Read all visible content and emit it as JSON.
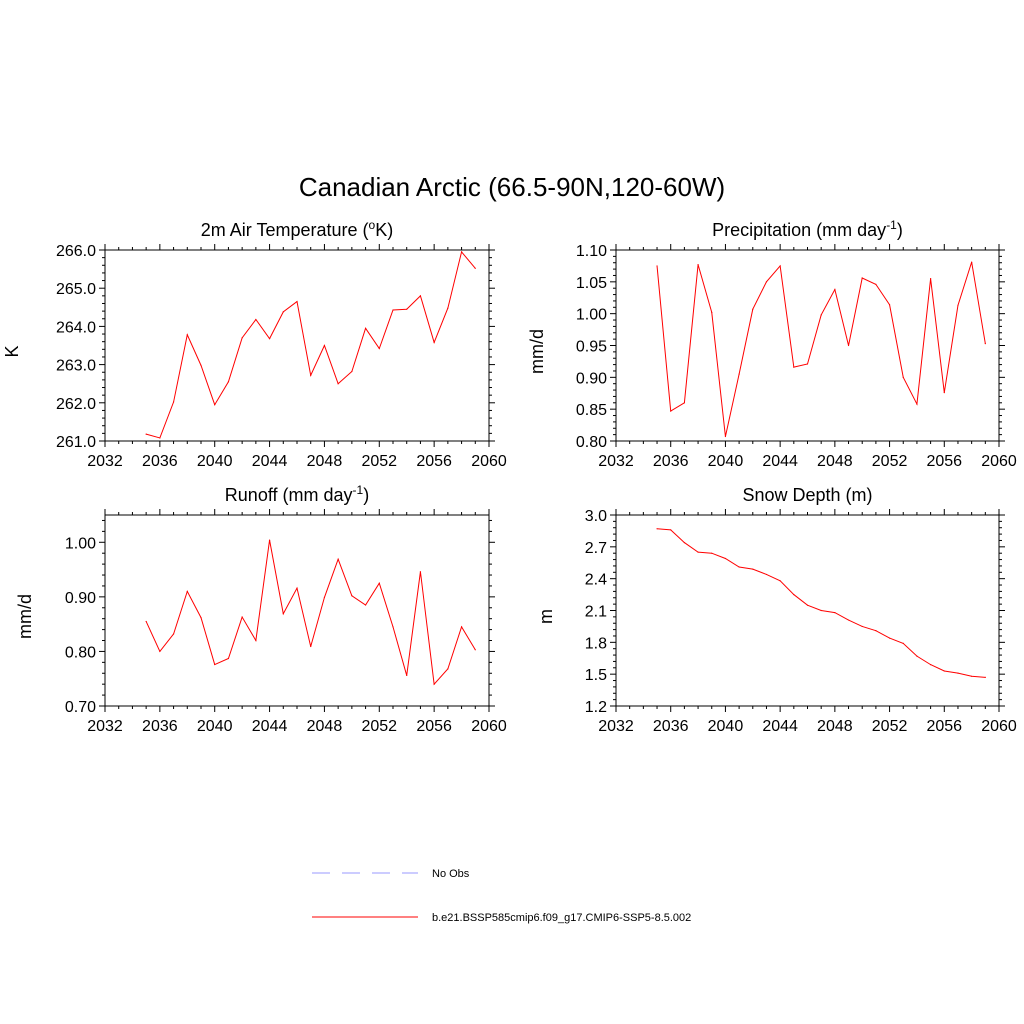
{
  "title": "Canadian Arctic (66.5-90N,120-60W)",
  "legend": [
    {
      "label": "No Obs",
      "color": "#9999ff",
      "dashed": true
    },
    {
      "label": "b.e21.BSSP585cmip6.f09_g17.CMIP6-SSP5-8.5.002",
      "color": "#ff0000",
      "dashed": false
    }
  ],
  "chart_data": [
    {
      "type": "line",
      "title": "2m Air Temperature (",
      "title_sup": "o",
      "title_after": "K)",
      "ylabel": "K",
      "xlim": [
        2032,
        2060
      ],
      "ylim": [
        261.0,
        266.0
      ],
      "xticks": [
        2032,
        2036,
        2040,
        2044,
        2048,
        2052,
        2056,
        2060
      ],
      "yticks": [
        261.0,
        262.0,
        263.0,
        264.0,
        265.0,
        266.0
      ],
      "ytick_labels": [
        "261.0",
        "262.0",
        "263.0",
        "264.0",
        "265.0",
        "266.0"
      ],
      "x": [
        2035,
        2036,
        2037,
        2038,
        2039,
        2040,
        2041,
        2042,
        2043,
        2044,
        2045,
        2046,
        2047,
        2048,
        2049,
        2050,
        2051,
        2052,
        2053,
        2054,
        2055,
        2056,
        2057,
        2058,
        2059
      ],
      "series": [
        {
          "color": "#ff0000",
          "values": [
            261.18,
            261.08,
            262.02,
            263.78,
            262.98,
            261.95,
            262.55,
            263.7,
            264.18,
            263.68,
            264.38,
            264.65,
            262.72,
            263.5,
            262.5,
            262.82,
            263.95,
            263.42,
            264.43,
            264.45,
            264.8,
            263.58,
            264.48,
            265.95,
            265.52
          ]
        }
      ]
    },
    {
      "type": "line",
      "title": "Precipitation (mm day",
      "title_sup": "-1",
      "title_after": ")",
      "ylabel": "mm/d",
      "xlim": [
        2032,
        2060
      ],
      "ylim": [
        0.8,
        1.1
      ],
      "xticks": [
        2032,
        2036,
        2040,
        2044,
        2048,
        2052,
        2056,
        2060
      ],
      "yticks": [
        0.8,
        0.85,
        0.9,
        0.95,
        1.0,
        1.05,
        1.1
      ],
      "ytick_labels": [
        "0.80",
        "0.85",
        "0.90",
        "0.95",
        "1.00",
        "1.05",
        "1.10"
      ],
      "x": [
        2035,
        2036,
        2037,
        2038,
        2039,
        2040,
        2041,
        2042,
        2043,
        2044,
        2045,
        2046,
        2047,
        2048,
        2049,
        2050,
        2051,
        2052,
        2053,
        2054,
        2055,
        2056,
        2057,
        2058,
        2059
      ],
      "series": [
        {
          "color": "#ff0000",
          "values": [
            1.075,
            0.847,
            0.86,
            1.077,
            1.002,
            0.807,
            0.905,
            1.007,
            1.05,
            1.075,
            0.916,
            0.921,
            0.998,
            1.038,
            0.95,
            1.056,
            1.046,
            1.014,
            0.9,
            0.858,
            1.055,
            0.876,
            1.013,
            1.081,
            0.953
          ]
        }
      ]
    },
    {
      "type": "line",
      "title": "Runoff (mm day",
      "title_sup": "-1",
      "title_after": ")",
      "ylabel": "mm/d",
      "xlim": [
        2032,
        2060
      ],
      "ylim": [
        0.7,
        1.05
      ],
      "xticks": [
        2032,
        2036,
        2040,
        2044,
        2048,
        2052,
        2056,
        2060
      ],
      "yticks": [
        0.7,
        0.8,
        0.9,
        1.0
      ],
      "ytick_labels": [
        "0.70",
        "0.80",
        "0.90",
        "1.00"
      ],
      "x": [
        2035,
        2036,
        2037,
        2038,
        2039,
        2040,
        2041,
        2042,
        2043,
        2044,
        2045,
        2046,
        2047,
        2048,
        2049,
        2050,
        2051,
        2052,
        2053,
        2054,
        2055,
        2056,
        2057,
        2058,
        2059
      ],
      "series": [
        {
          "color": "#ff0000",
          "values": [
            0.855,
            0.8,
            0.832,
            0.91,
            0.862,
            0.776,
            0.787,
            0.863,
            0.82,
            1.004,
            0.869,
            0.916,
            0.809,
            0.899,
            0.969,
            0.902,
            0.885,
            0.925,
            0.845,
            0.756,
            0.946,
            0.74,
            0.768,
            0.845,
            0.803
          ]
        }
      ]
    },
    {
      "type": "line",
      "title": "Snow Depth (m)",
      "title_sup": "",
      "title_after": "",
      "ylabel": "m",
      "xlim": [
        2032,
        2060
      ],
      "ylim": [
        1.2,
        3.0
      ],
      "xticks": [
        2032,
        2036,
        2040,
        2044,
        2048,
        2052,
        2056,
        2060
      ],
      "yticks": [
        1.2,
        1.5,
        1.8,
        2.1,
        2.4,
        2.7,
        3.0
      ],
      "ytick_labels": [
        "1.2",
        "1.5",
        "1.8",
        "2.1",
        "2.4",
        "2.7",
        "3.0"
      ],
      "x": [
        2035,
        2036,
        2037,
        2038,
        2039,
        2040,
        2041,
        2042,
        2043,
        2044,
        2045,
        2046,
        2047,
        2048,
        2049,
        2050,
        2051,
        2052,
        2053,
        2054,
        2055,
        2056,
        2057,
        2058,
        2059
      ],
      "series": [
        {
          "color": "#ff0000",
          "values": [
            2.87,
            2.86,
            2.74,
            2.65,
            2.64,
            2.59,
            2.51,
            2.49,
            2.44,
            2.38,
            2.25,
            2.15,
            2.1,
            2.08,
            2.01,
            1.95,
            1.91,
            1.84,
            1.79,
            1.67,
            1.59,
            1.53,
            1.51,
            1.48,
            1.47
          ]
        }
      ]
    }
  ]
}
